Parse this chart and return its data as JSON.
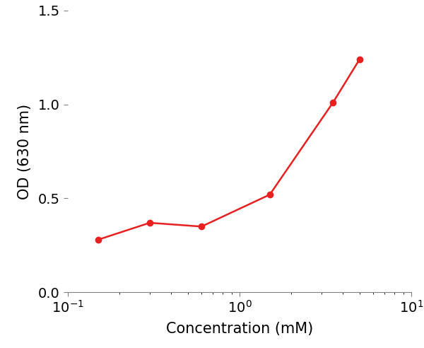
{
  "x": [
    0.15,
    0.3,
    0.6,
    1.5,
    3.5,
    5.0
  ],
  "y": [
    0.28,
    0.37,
    0.35,
    0.52,
    1.01,
    1.24
  ],
  "line_color": "#e82020",
  "marker": "o",
  "marker_size": 6,
  "linewidth": 1.8,
  "xlabel": "Concentration (mM)",
  "ylabel": "OD (630 nm)",
  "xlim": [
    0.1,
    10
  ],
  "ylim": [
    0.0,
    1.5
  ],
  "yticks": [
    0.0,
    0.5,
    1.0,
    1.5
  ],
  "xticks": [
    0.1,
    1.0,
    10.0
  ],
  "xlabel_fontsize": 15,
  "ylabel_fontsize": 15,
  "tick_fontsize": 14,
  "background_color": "#ffffff"
}
